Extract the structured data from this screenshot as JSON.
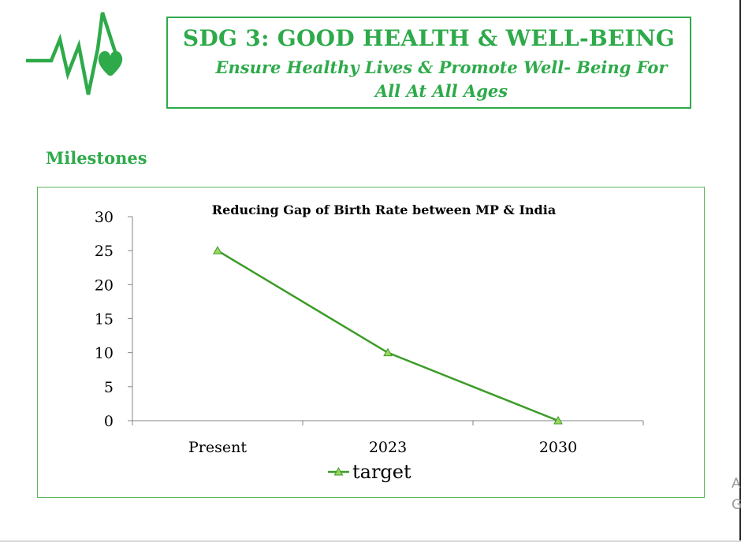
{
  "header": {
    "title": "SDG 3: GOOD HEALTH & WELL-BEING",
    "subtitle": "Ensure Healthy Lives & Promote Well- Being For All At All Ages",
    "logo_icon": "heartbeat-heart-icon"
  },
  "section_label": "Milestones",
  "colors": {
    "accent": "#2eaa4a",
    "line": "#3b9c26",
    "marker": "#9bd65b"
  },
  "chart_data": {
    "type": "line",
    "title": "Reducing Gap of Birth Rate between MP & India",
    "categories": [
      "Present",
      "2023",
      "2030"
    ],
    "series": [
      {
        "name": "target",
        "values": [
          25,
          10,
          0
        ]
      }
    ],
    "ylim": [
      0,
      30
    ],
    "yticks": [
      0,
      5,
      10,
      15,
      20,
      25,
      30
    ],
    "xlabel": "",
    "ylabel": "",
    "grid": false,
    "legend": "bottom"
  },
  "edge_text": [
    "A",
    "G"
  ]
}
